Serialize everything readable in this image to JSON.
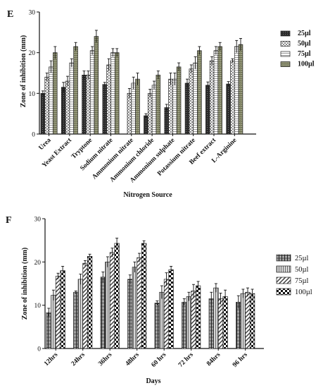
{
  "chart_data": [
    {
      "panel": "E",
      "type": "bar",
      "xlabel": "Nitrogen Source",
      "ylabel": "Zone of inhibition (mm)",
      "ylim": [
        0,
        30
      ],
      "yticks": [
        "0",
        "10",
        "20",
        "30"
      ],
      "legend_position": "right",
      "categories": [
        "Urea",
        "Yeast Extract",
        "Tryptone",
        "Sodium nitrate",
        "Ammonium nitrate",
        "Ammonium chloride",
        "Ammonium sulphate",
        "Potassium nitrate",
        "Beef extract",
        "L-Arginine"
      ],
      "series": [
        {
          "name": "25µl",
          "fill": "dark",
          "values": [
            10,
            11.5,
            14.5,
            12.2,
            0,
            4.5,
            6.5,
            12.5,
            12,
            12.3
          ]
        },
        {
          "name": "50µl",
          "fill": "checker",
          "values": [
            14,
            13,
            14.5,
            17,
            10,
            10,
            13.5,
            16,
            18,
            18
          ]
        },
        {
          "name": "75µl",
          "fill": "hlines",
          "values": [
            16.5,
            17.5,
            20.5,
            20,
            12.5,
            12,
            13.5,
            17.5,
            20.5,
            21.5
          ]
        },
        {
          "name": "100µl",
          "fill": "grain",
          "values": [
            20,
            21.5,
            24,
            20,
            13.5,
            14.5,
            16.5,
            20.5,
            21.5,
            22
          ]
        }
      ],
      "errors": [
        [
          0.6,
          1.2,
          1.0,
          0.5,
          0,
          0.5,
          0.8,
          1.0,
          0.8,
          0.6
        ],
        [
          1.0,
          1.2,
          1.0,
          1.5,
          1.2,
          1.0,
          1.5,
          1.0,
          1.0,
          0.5
        ],
        [
          1.5,
          1.0,
          1.0,
          1.0,
          1.5,
          1.0,
          1.5,
          1.5,
          1.0,
          1.5
        ],
        [
          1.5,
          1.0,
          1.5,
          1.0,
          1.5,
          1.0,
          1.0,
          1.0,
          1.0,
          1.5
        ]
      ]
    },
    {
      "panel": "F",
      "type": "bar",
      "xlabel": "Days",
      "ylabel": "Zone of inhibition (mm)",
      "ylim": [
        0,
        30
      ],
      "yticks": [
        "0",
        "10",
        "20",
        "30"
      ],
      "legend_position": "right",
      "categories": [
        "12hrs",
        "24hrs",
        "36hrs",
        "48hrs",
        "60 hrs",
        "72 hrs",
        "84hrs",
        "96 hrs"
      ],
      "series": [
        {
          "name": "25µl",
          "fill": "brick",
          "values": [
            8.3,
            13,
            16.5,
            16,
            10.5,
            10.7,
            11.5,
            10.7
          ]
        },
        {
          "name": "50µl",
          "fill": "vlines",
          "values": [
            12.3,
            16,
            20,
            18.8,
            13,
            12,
            14,
            12.7
          ]
        },
        {
          "name": "75µl",
          "fill": "diag",
          "values": [
            16.7,
            19.7,
            22.2,
            21,
            16,
            13.3,
            11.5,
            13
          ]
        },
        {
          "name": "100µl",
          "fill": "check",
          "values": [
            18,
            21.3,
            24.3,
            24.3,
            18.2,
            14.5,
            12,
            12.7
          ]
        }
      ],
      "errors": [
        [
          1.0,
          0.3,
          1.2,
          1.0,
          0.5,
          0.8,
          1.5,
          1.5
        ],
        [
          1.2,
          1.2,
          1.2,
          1.2,
          1.5,
          1.0,
          1.0,
          1.0
        ],
        [
          0.7,
          0.6,
          1.0,
          1.0,
          1.5,
          1.5,
          1.3,
          1.0
        ],
        [
          1.0,
          0.5,
          1.2,
          0.6,
          0.8,
          1.0,
          1.5,
          1.0
        ]
      ]
    }
  ]
}
